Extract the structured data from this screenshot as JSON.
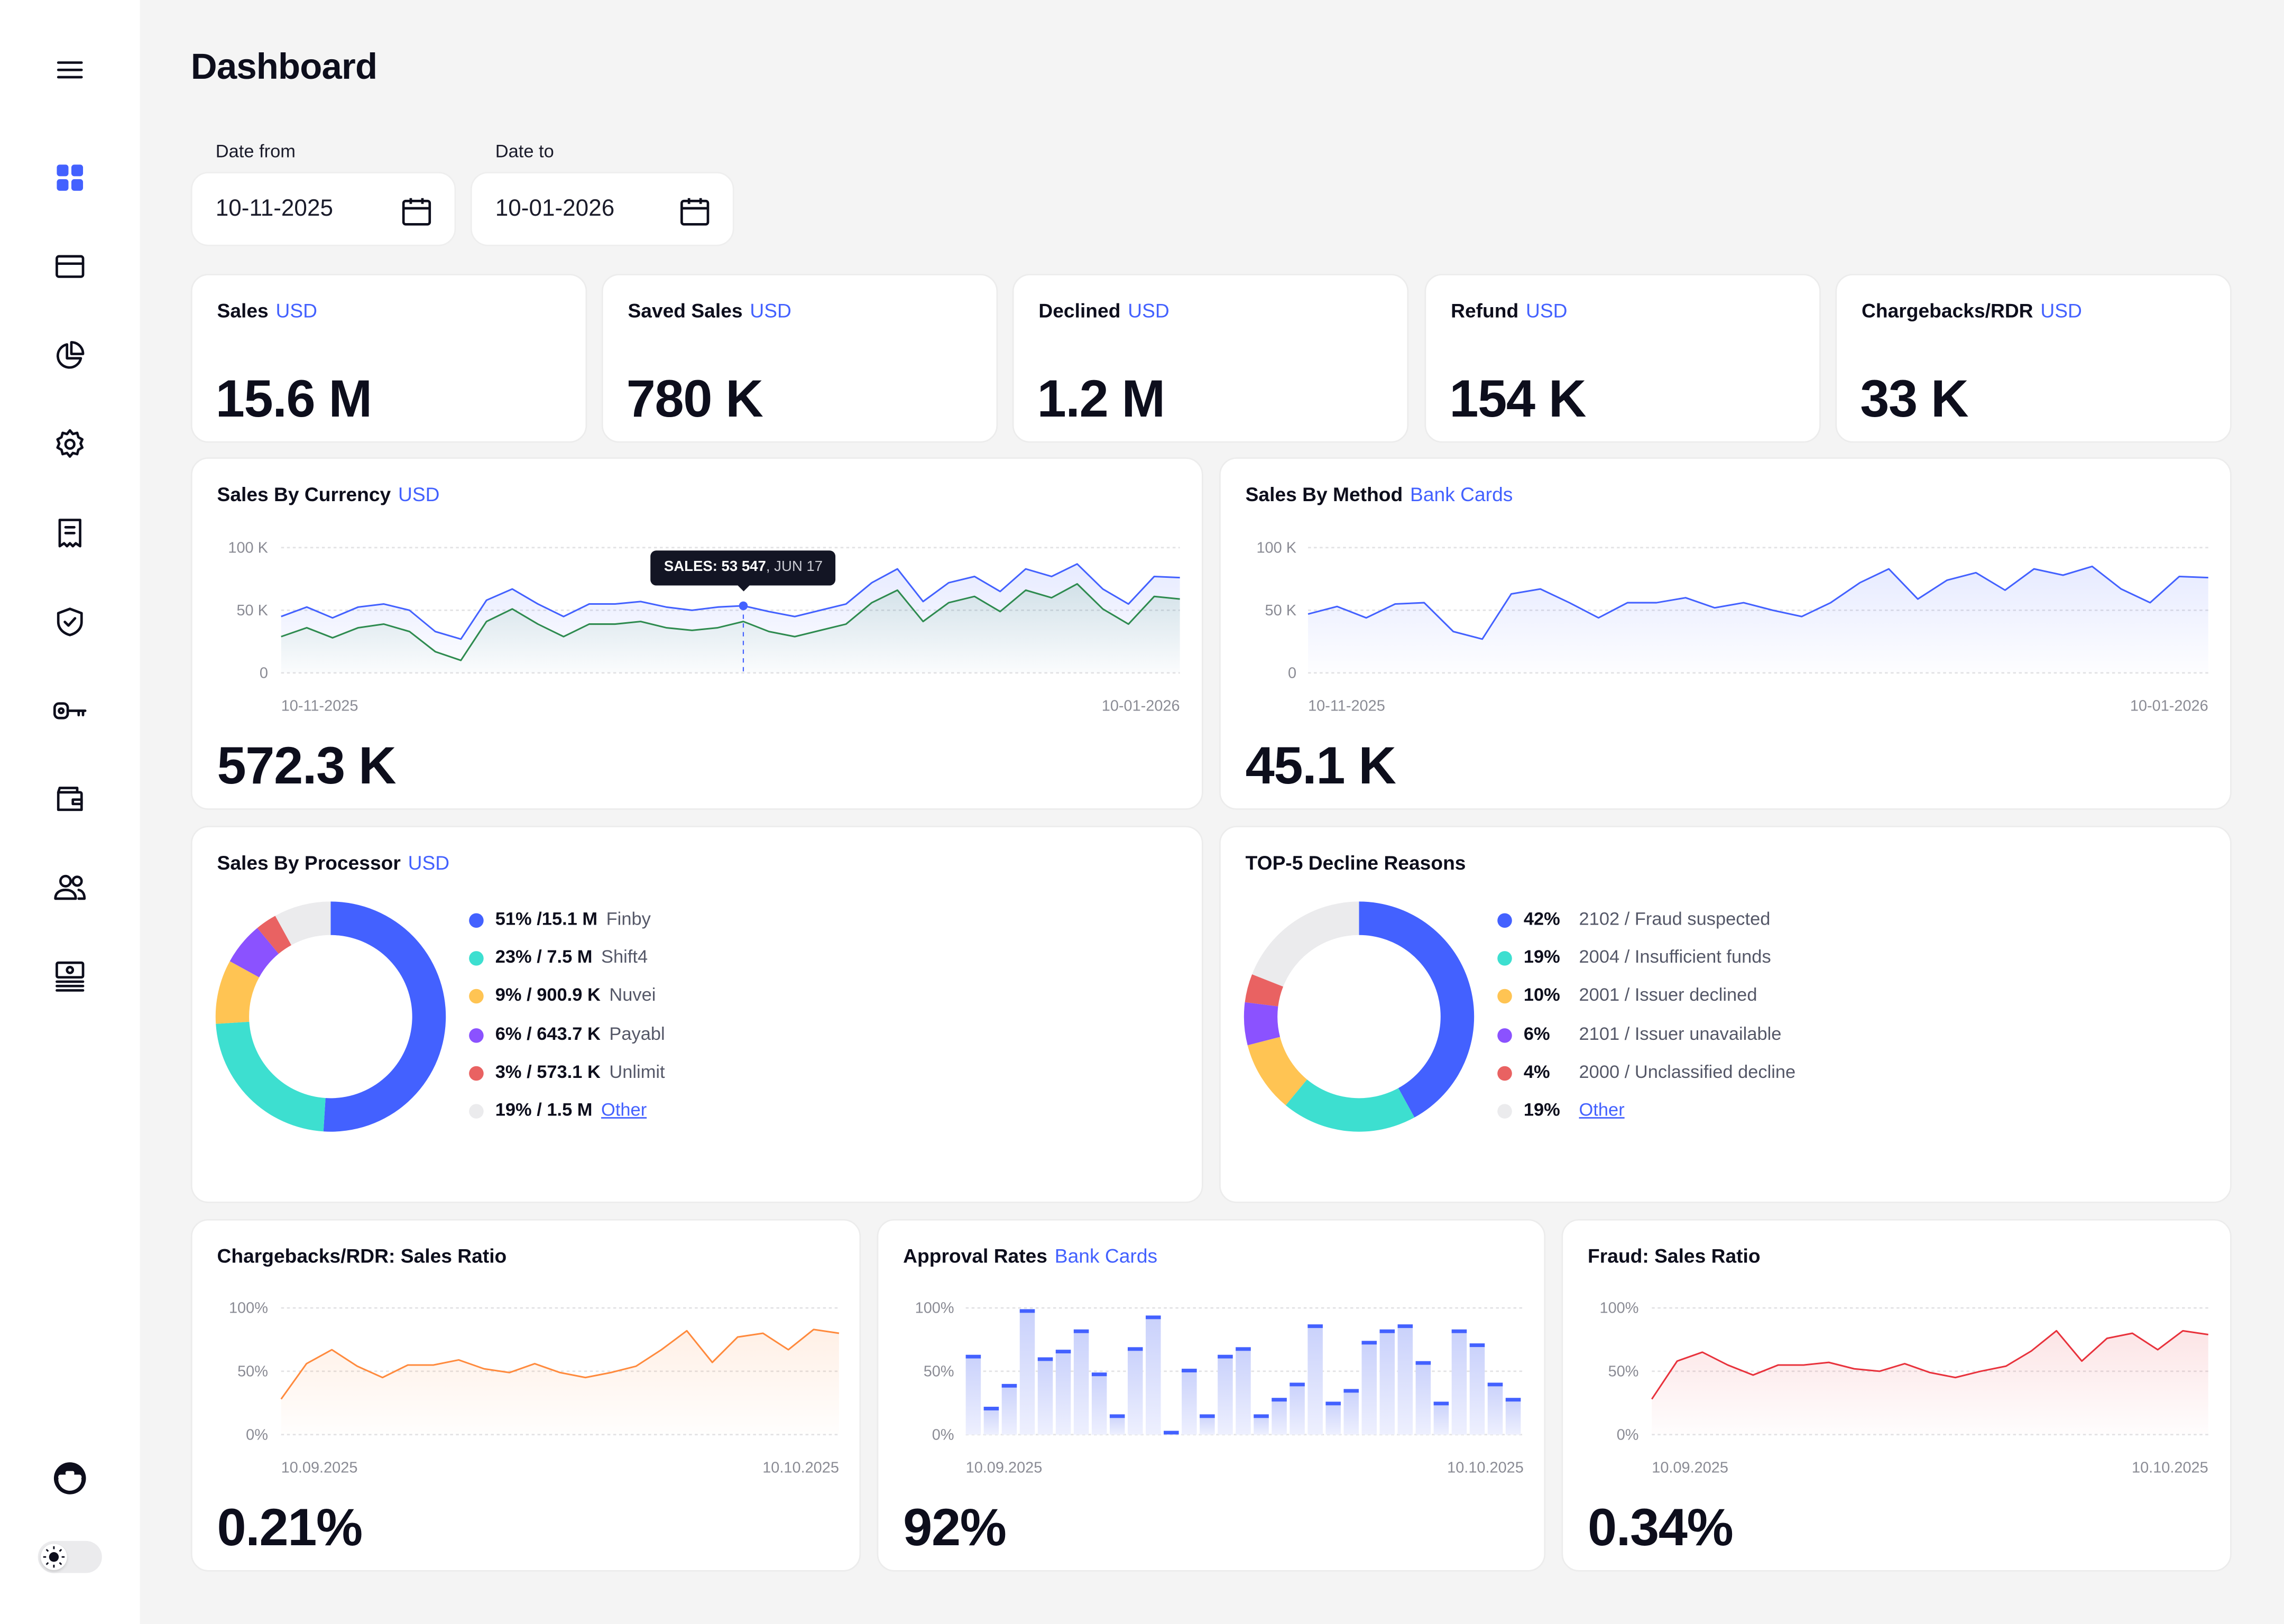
{
  "sidebar": {
    "items": [
      {
        "name": "menu",
        "icon": "menu-icon"
      },
      {
        "name": "dashboard",
        "icon": "dashboard-grid-icon",
        "active": true
      },
      {
        "name": "transactions",
        "icon": "card-icon"
      },
      {
        "name": "reports",
        "icon": "pie-chart-icon"
      },
      {
        "name": "settings",
        "icon": "gear-icon"
      },
      {
        "name": "invoices",
        "icon": "receipt-icon"
      },
      {
        "name": "security",
        "icon": "shield-check-icon"
      },
      {
        "name": "api-keys",
        "icon": "key-icon"
      },
      {
        "name": "wallet",
        "icon": "wallet-icon"
      },
      {
        "name": "users",
        "icon": "users-icon"
      },
      {
        "name": "payouts",
        "icon": "monitor-list-icon"
      }
    ],
    "account_icon": "briefcase-avatar-icon",
    "theme_toggle": {
      "icon": "sun-icon",
      "mode": "light"
    }
  },
  "header": {
    "title": "Dashboard"
  },
  "filters": {
    "date_from": {
      "label": "Date from",
      "value": "10-11-2025"
    },
    "date_to": {
      "label": "Date to",
      "value": "10-01-2026"
    }
  },
  "kpis": [
    {
      "label": "Sales",
      "currency": "USD",
      "value": "15.6 M"
    },
    {
      "label": "Saved Sales",
      "currency": "USD",
      "value": "780 K"
    },
    {
      "label": "Declined",
      "currency": "USD",
      "value": "1.2 M"
    },
    {
      "label": "Refund",
      "currency": "USD",
      "value": "154 K"
    },
    {
      "label": "Chargebacks/RDR",
      "currency": "USD",
      "value": "33 K"
    }
  ],
  "sales_by_currency": {
    "title": "Sales By Currency",
    "tag": "USD",
    "total": "572.3 K",
    "tooltip": {
      "label": "SALES: 53 547",
      "date": ", JUN 17",
      "index": 18
    }
  },
  "sales_by_method": {
    "title": "Sales By Method",
    "tag": "Bank Cards",
    "total": "45.1 K"
  },
  "sales_by_processor": {
    "title": "Sales By Processor",
    "tag": "USD"
  },
  "decline_reasons": {
    "title": "TOP-5 Decline Reasons"
  },
  "chargebacks_ratio": {
    "title": "Chargebacks/RDR: Sales Ratio",
    "total": "0.21%"
  },
  "approval_rates": {
    "title": "Approval Rates",
    "tag": "Bank Cards",
    "total": "92%"
  },
  "fraud_ratio": {
    "title": "Fraud: Sales Ratio",
    "total": "0.34%"
  },
  "colors": {
    "accent": "#4361ff",
    "teal": "#3ddfd0",
    "yellow": "#ffc453",
    "purple": "#8b52ff",
    "red": "#e96262",
    "gray": "#ebebed"
  },
  "chart_data": [
    {
      "type": "area",
      "ylim": [
        0,
        100000
      ],
      "grid": true,
      "y_ticks": [
        {
          "value": 0,
          "label": "0"
        },
        {
          "value": 50000,
          "label": "50 K"
        },
        {
          "value": 100000,
          "label": "100 K"
        }
      ],
      "x_labels": [
        "10-11-2025",
        "10-01-2026"
      ],
      "series": [
        {
          "color": "#4361ff",
          "values": [
            45000,
            52500,
            44000,
            52500,
            55000,
            50000,
            33000,
            27000,
            58000,
            67000,
            55000,
            45000,
            55000,
            55000,
            57000,
            52500,
            50000,
            52500,
            53547,
            49000,
            45000,
            50000,
            55000,
            72000,
            83000,
            57000,
            72000,
            77000,
            65000,
            83000,
            77000,
            87000,
            67000,
            55000,
            77000,
            76000
          ]
        },
        {
          "color": "#2e8b4f",
          "values": [
            29000,
            36000,
            28000,
            36000,
            39000,
            33000,
            17000,
            10000,
            41000,
            51000,
            39000,
            29000,
            39000,
            39000,
            41000,
            36000,
            34000,
            36000,
            41000,
            33000,
            29000,
            34000,
            39000,
            56000,
            66000,
            41000,
            56000,
            61000,
            49000,
            66000,
            60000,
            71000,
            51000,
            39000,
            61000,
            59000
          ]
        }
      ]
    },
    {
      "type": "area",
      "ylim": [
        0,
        100000
      ],
      "grid": true,
      "y_ticks": [
        {
          "value": 0,
          "label": "0"
        },
        {
          "value": 50000,
          "label": "50 K"
        },
        {
          "value": 100000,
          "label": "100 K"
        }
      ],
      "x_labels": [
        "10-11-2025",
        "10-01-2026"
      ],
      "series": [
        {
          "color": "#4361ff",
          "values": [
            47000,
            53000,
            44000,
            55000,
            56000,
            33000,
            27000,
            63000,
            67000,
            56000,
            44000,
            56000,
            56000,
            60000,
            52000,
            56000,
            50000,
            45000,
            56000,
            72000,
            83000,
            59000,
            74000,
            80000,
            66000,
            83000,
            78000,
            85000,
            67000,
            56000,
            77000,
            76000
          ]
        }
      ]
    },
    {
      "type": "pie",
      "donut": true,
      "slices": [
        {
          "percent": 51,
          "amount": "15.1 M",
          "label": "51% /15.1 M",
          "name": "Finby",
          "color": "#4361ff"
        },
        {
          "percent": 23,
          "amount": "7.5 M",
          "label": "23% / 7.5 M",
          "name": "Shift4",
          "color": "#3ddfd0"
        },
        {
          "percent": 9,
          "amount": "900.9 K",
          "label": "9% / 900.9 K",
          "name": "Nuvei",
          "color": "#ffc453"
        },
        {
          "percent": 6,
          "amount": "643.7 K",
          "label": "6% / 643.7 K",
          "name": "Payabl",
          "color": "#8b52ff"
        },
        {
          "percent": 3,
          "amount": "573.1 K",
          "label": "3% / 573.1 K",
          "name": "Unlimit",
          "color": "#e96262"
        },
        {
          "percent": 19,
          "amount": "1.5 M",
          "label": "19% / 1.5 M",
          "name": "Other",
          "color": "#ebebed",
          "link": true
        }
      ]
    },
    {
      "type": "pie",
      "donut": true,
      "slices": [
        {
          "percent": 42,
          "label": "42%",
          "name": "2102 / Fraud suspected",
          "color": "#4361ff"
        },
        {
          "percent": 19,
          "label": "19%",
          "name": "2004 / Insufficient funds",
          "color": "#3ddfd0"
        },
        {
          "percent": 10,
          "label": "10%",
          "name": "2001 / Issuer declined",
          "color": "#ffc453"
        },
        {
          "percent": 6,
          "label": "6%",
          "name": "2101 / Issuer unavailable",
          "color": "#8b52ff"
        },
        {
          "percent": 4,
          "label": "4%",
          "name": "2000 / Unclassified decline",
          "color": "#e96262"
        },
        {
          "percent": 19,
          "label": "19%",
          "name": "Other",
          "color": "#ebebed",
          "link": true
        }
      ]
    },
    {
      "type": "area",
      "ylim": [
        0,
        100
      ],
      "grid": true,
      "y_ticks": [
        {
          "value": 0,
          "label": "0%"
        },
        {
          "value": 50,
          "label": "50%"
        },
        {
          "value": 100,
          "label": "100%"
        }
      ],
      "x_labels": [
        "10.09.2025",
        "10.10.2025"
      ],
      "series": [
        {
          "color": "#ff8a3d",
          "values": [
            28,
            56,
            67,
            54,
            45,
            55,
            55,
            59,
            52,
            49,
            56,
            49,
            45,
            49,
            54,
            67,
            82,
            57,
            77,
            80,
            67,
            83,
            80
          ]
        }
      ]
    },
    {
      "type": "bar",
      "ylim": [
        0,
        100
      ],
      "grid": true,
      "y_ticks": [
        {
          "value": 0,
          "label": "0%"
        },
        {
          "value": 50,
          "label": "50%"
        },
        {
          "value": 100,
          "label": "100%"
        }
      ],
      "x_labels": [
        "10.09.2025",
        "10.10.2025"
      ],
      "series": [
        {
          "color": "#4361ff",
          "values": [
            63,
            22,
            40,
            99,
            61,
            67,
            83,
            49,
            16,
            69,
            94,
            3,
            52,
            16,
            63,
            69,
            16,
            29,
            41,
            87,
            26,
            36,
            74,
            83,
            87,
            58,
            26,
            83,
            72,
            41,
            29
          ]
        }
      ]
    },
    {
      "type": "area",
      "ylim": [
        0,
        100
      ],
      "grid": true,
      "y_ticks": [
        {
          "value": 0,
          "label": "0%"
        },
        {
          "value": 50,
          "label": "50%"
        },
        {
          "value": 100,
          "label": "100%"
        }
      ],
      "x_labels": [
        "10.09.2025",
        "10.10.2025"
      ],
      "series": [
        {
          "color": "#e8323c",
          "values": [
            28,
            58,
            65,
            55,
            47,
            55,
            55,
            57,
            52,
            50,
            56,
            49,
            45,
            50,
            54,
            66,
            82,
            58,
            76,
            80,
            67,
            82,
            79
          ]
        }
      ]
    }
  ]
}
